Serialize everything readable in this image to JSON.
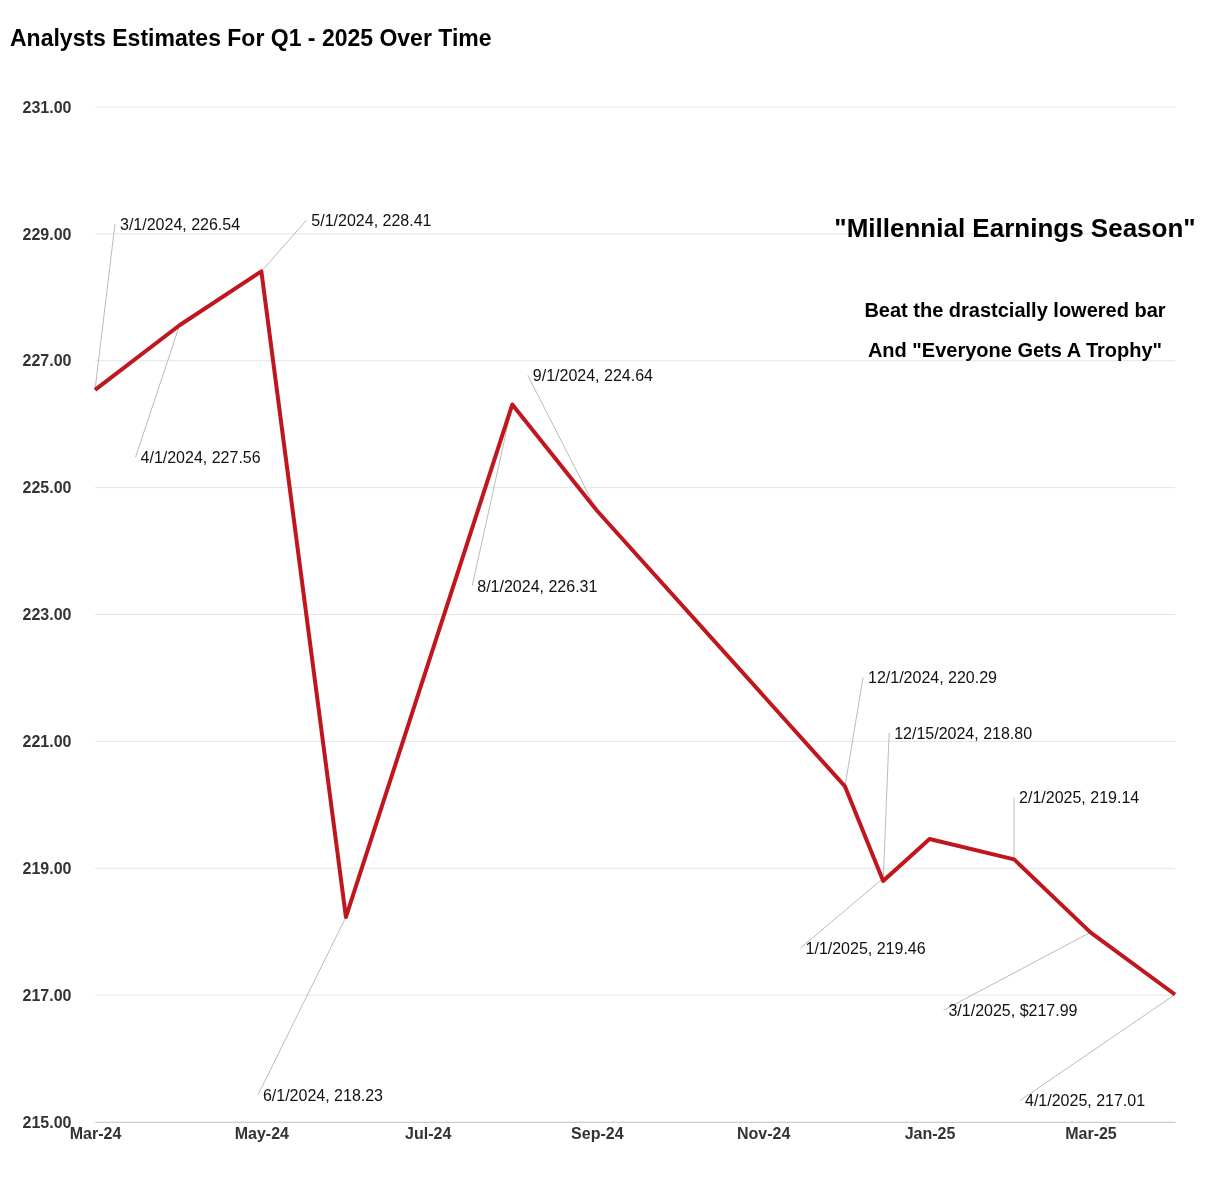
{
  "chart_data": {
    "type": "line",
    "title": "Analysts Estimates For Q1 - 2025 Over Time",
    "x": [
      "2024-03-01",
      "2024-04-01",
      "2024-05-01",
      "2024-06-01",
      "2024-08-01",
      "2024-09-01",
      "2024-12-01",
      "2024-12-15",
      "2025-01-01",
      "2025-02-01",
      "2025-03-01",
      "2025-04-01"
    ],
    "series": [
      {
        "color": "#c0171e",
        "values": [
          226.54,
          227.56,
          228.41,
          218.23,
          226.31,
          224.64,
          220.29,
          218.8,
          219.46,
          219.14,
          217.99,
          217.01
        ],
        "value_labels": [
          "3/1/2024,  226.54",
          "4/1/2024,  227.56",
          "5/1/2024,  228.41",
          "6/1/2024, 218.23",
          "8/1/2024,  226.31",
          "9/1/2024,  224.64",
          "12/1/2024,  220.29",
          "12/15/2024,  218.80",
          "1/1/2025,  219.46",
          "2/1/2025,  219.14",
          "3/1/2025, $217.99",
          "4/1/2025,  217.01"
        ]
      }
    ],
    "xlim": [
      "2024-03-01",
      "2025-04-01"
    ],
    "xticks": [
      {
        "value": "2024-03-01",
        "label": "Mar-24"
      },
      {
        "value": "2024-05-01",
        "label": "May-24"
      },
      {
        "value": "2024-07-01",
        "label": "Jul-24"
      },
      {
        "value": "2024-09-01",
        "label": "Sep-24"
      },
      {
        "value": "2024-11-01",
        "label": "Nov-24"
      },
      {
        "value": "2025-01-01",
        "label": "Jan-25"
      },
      {
        "value": "2025-03-01",
        "label": "Mar-25"
      }
    ],
    "ylim": [
      215,
      231
    ],
    "yticks": [
      {
        "value": 215,
        "label": "215.00"
      },
      {
        "value": 217,
        "label": "217.00"
      },
      {
        "value": 219,
        "label": "219.00"
      },
      {
        "value": 221,
        "label": "221.00"
      },
      {
        "value": 223,
        "label": "223.00"
      },
      {
        "value": 225,
        "label": "225.00"
      },
      {
        "value": 227,
        "label": "227.00"
      },
      {
        "value": 229,
        "label": "229.00"
      },
      {
        "value": 231,
        "label": "231.00"
      }
    ],
    "grid": "y",
    "annotations": [
      "\"Millennial Earnings Season\"",
      "Beat the drastcially lowered bar",
      "And \"Everyone Gets A Trophy\""
    ]
  }
}
